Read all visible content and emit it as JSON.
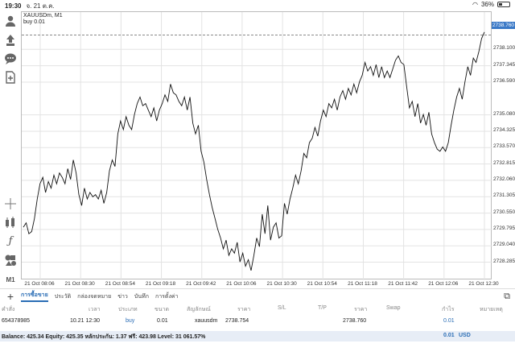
{
  "status": {
    "time": "19:30",
    "date": "จ. 21 ต.ค.",
    "battery": "36%"
  },
  "chart": {
    "symbol": "XAUUSDm, M1",
    "order": "buy 0.01",
    "current_price": "2738.760",
    "price_ticks": [
      "2738.100",
      "2737.345",
      "2736.590",
      "2735.080",
      "2734.325",
      "2733.570",
      "2732.815",
      "2732.060",
      "2731.305",
      "2730.550",
      "2729.795",
      "2729.040",
      "2728.285"
    ],
    "time_ticks": [
      "21 Oct 08:06",
      "21 Oct 08:30",
      "21 Oct 08:54",
      "21 Oct 09:18",
      "21 Oct 09:42",
      "21 Oct 10:06",
      "21 Oct 10:30",
      "21 Oct 10:54",
      "21 Oct 11:18",
      "21 Oct 11:42",
      "21 Oct 12:06",
      "21 Oct 12:30"
    ]
  },
  "chart_data": {
    "type": "line",
    "title": "XAUUSDm, M1",
    "xlabel": "",
    "ylabel": "",
    "ylim": [
      2727.6,
      2739.3
    ],
    "y_grid_values": [
      2738.1,
      2737.345,
      2736.59,
      2735.08,
      2734.325,
      2733.57,
      2732.815,
      2732.06,
      2731.305,
      2730.55,
      2729.795,
      2729.04,
      2728.285
    ],
    "x_ticks": [
      "21 Oct 08:06",
      "21 Oct 08:30",
      "21 Oct 08:54",
      "21 Oct 09:18",
      "21 Oct 09:42",
      "21 Oct 10:06",
      "21 Oct 10:30",
      "21 Oct 10:54",
      "21 Oct 11:18",
      "21 Oct 11:42",
      "21 Oct 12:06",
      "21 Oct 12:30"
    ],
    "series": [
      {
        "values": [
          2729.9,
          2730.1,
          2729.6,
          2729.7,
          2730.3,
          2731.2,
          2731.9,
          2732.2,
          2731.5,
          2732.0,
          2731.7,
          2732.3,
          2731.9,
          2732.4,
          2732.2,
          2731.9,
          2732.6,
          2732.1,
          2733.0,
          2732.4,
          2731.4,
          2730.9,
          2731.7,
          2731.2,
          2731.5,
          2731.3,
          2731.4,
          2731.2,
          2731.6,
          2731.0,
          2731.5,
          2732.5,
          2733.0,
          2732.7,
          2734.2,
          2734.8,
          2734.4,
          2735.0,
          2734.6,
          2734.4,
          2735.1,
          2735.6,
          2735.9,
          2735.5,
          2735.6,
          2735.3,
          2735.0,
          2735.4,
          2734.8,
          2735.3,
          2735.6,
          2736.0,
          2735.7,
          2736.5,
          2736.1,
          2736.0,
          2735.7,
          2735.5,
          2735.9,
          2735.3,
          2735.9,
          2734.7,
          2734.2,
          2734.6,
          2733.4,
          2732.9,
          2732.1,
          2731.4,
          2730.8,
          2730.3,
          2729.8,
          2729.4,
          2728.9,
          2729.3,
          2728.6,
          2728.9,
          2728.7,
          2729.2,
          2728.3,
          2728.7,
          2728.1,
          2728.4,
          2727.9,
          2728.6,
          2729.4,
          2729.0,
          2730.5,
          2729.6,
          2730.9,
          2729.3,
          2729.9,
          2730.1,
          2729.4,
          2729.5,
          2731.0,
          2730.5,
          2731.2,
          2731.7,
          2732.3,
          2731.9,
          2732.5,
          2733.3,
          2733.1,
          2733.8,
          2734.0,
          2734.5,
          2734.1,
          2734.8,
          2735.3,
          2735.0,
          2735.6,
          2735.4,
          2735.8,
          2735.3,
          2735.9,
          2736.2,
          2735.8,
          2736.3,
          2736.0,
          2736.5,
          2736.1,
          2736.6,
          2736.9,
          2737.5,
          2737.1,
          2737.3,
          2736.9,
          2737.4,
          2736.8,
          2737.3,
          2736.8,
          2737.1,
          2736.8,
          2737.2,
          2737.6,
          2737.8,
          2737.5,
          2737.4,
          2736.4,
          2735.4,
          2735.7,
          2735.0,
          2735.6,
          2734.7,
          2735.1,
          2734.6,
          2735.2,
          2734.2,
          2733.8,
          2733.5,
          2733.4,
          2733.6,
          2733.4,
          2733.8,
          2734.6,
          2735.3,
          2735.9,
          2736.3,
          2735.8,
          2736.6,
          2737.3,
          2736.9,
          2737.7,
          2737.5,
          2738.0,
          2738.6,
          2738.9
        ]
      }
    ]
  },
  "left_toolbar": [
    {
      "name": "account-icon",
      "glyph": "👤"
    },
    {
      "name": "trade-icon",
      "glyph": "⇧"
    },
    {
      "name": "chat-icon",
      "glyph": "💬"
    },
    {
      "name": "new-chart-icon",
      "glyph": "+"
    },
    {
      "name": "crosshair-icon",
      "glyph": "✛"
    },
    {
      "name": "indicators-icon",
      "glyph": "⚗"
    },
    {
      "name": "function-icon",
      "glyph": "ƒ"
    },
    {
      "name": "objects-icon",
      "glyph": "◆"
    },
    {
      "name": "timeframe-label",
      "glyph": "M1"
    }
  ],
  "tabs": [
    "การซื้อขาย",
    "ประวัติ",
    "กล่องจดหมาย",
    "ข่าว",
    "บันทึก",
    "การตั้งค่า"
  ],
  "table": {
    "headers": {
      "order": "คำสั่ง",
      "time": "เวลา",
      "type": "ประเภท",
      "size": "ขนาด",
      "symbol": "สัญลักษณ์",
      "price": "ราคา",
      "sl": "S/L",
      "tp": "T/P",
      "price2": "ราคา",
      "swap": "Swap",
      "profit": "กำไร",
      "comment": "หมายเหตุ"
    },
    "row": {
      "order": "654378985",
      "time": "10.21 12:30",
      "type": "buy",
      "size": "0.01",
      "symbol": "xauusdm",
      "price": "2738.754",
      "price2": "2738.760",
      "profit": "0.01"
    }
  },
  "balance": {
    "text": "Balance: 425.34 Equity: 425.35 หลักประกัน: 1.37 ฟรี: 423.98 Level: 31 061.57%",
    "profit": "0.01",
    "currency": "USD"
  },
  "colors": {
    "accent": "#2a6db5",
    "current_price_bg": "#3a79c7",
    "balance_bg": "#e7edf6"
  }
}
